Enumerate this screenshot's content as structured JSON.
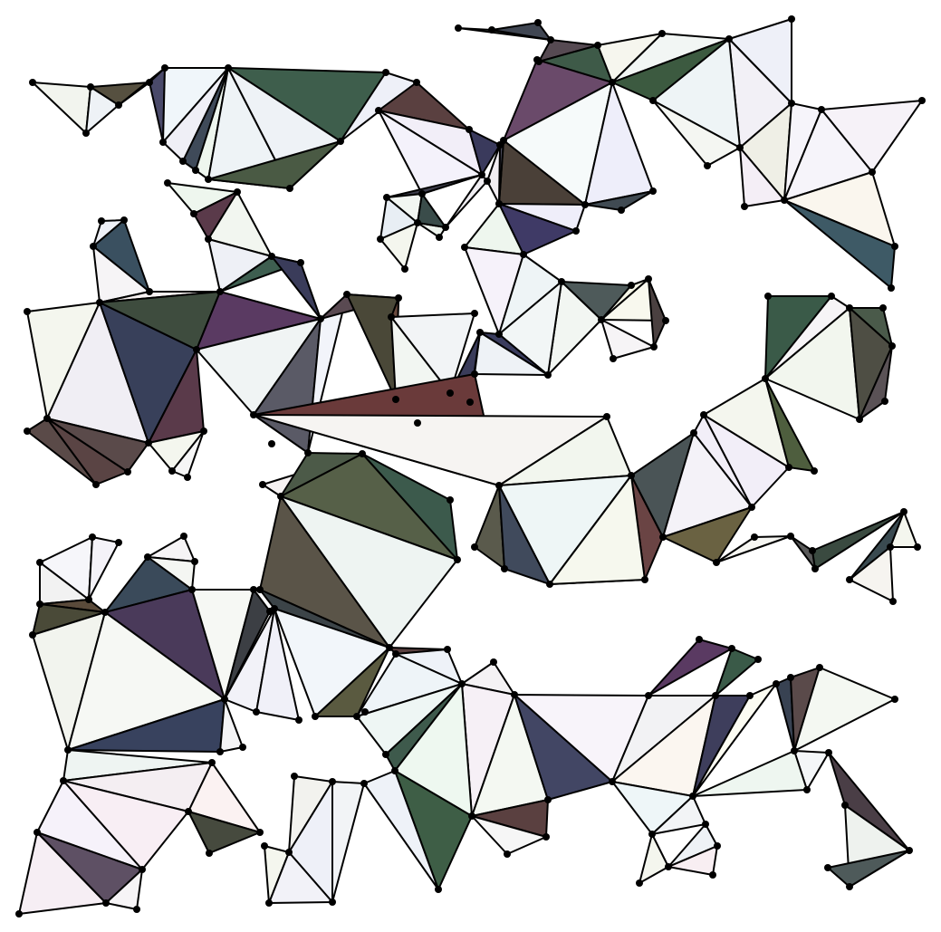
{
  "canvas": {
    "background": "#ffffff",
    "stroke_color": "#000000"
  }
}
